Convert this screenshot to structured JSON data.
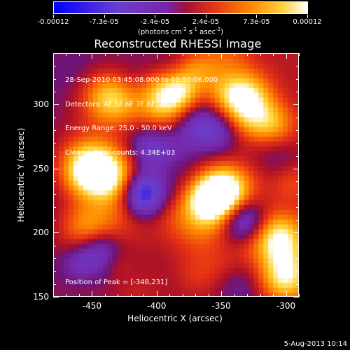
{
  "colorbar": {
    "tick_labels": [
      "-0.00012",
      "-7.3e-05",
      "-2.4e-05",
      "2.4e-05",
      "7.3e-05",
      "0.00012"
    ],
    "units_prefix": "(photons cm",
    "units_exp1": "-2",
    "units_mid1": " s",
    "units_exp2": "-1",
    "units_mid2": " asec",
    "units_exp3": "-2",
    "units_suffix": ")",
    "colors": [
      "#0000ff",
      "#6a3fd0",
      "#7a22a8",
      "#c0201a",
      "#ff7a00",
      "#ffd040",
      "#ffffff"
    ]
  },
  "chart_data": {
    "type": "heatmap",
    "title": "Reconstructed RHESSI Image",
    "xlabel": "Heliocentric X (arcsec)",
    "ylabel": "Heliocentric Y (arcsec)",
    "xlim": [
      -480,
      -290
    ],
    "ylim": [
      150,
      340
    ],
    "x_ticks": [
      -450,
      -400,
      -350,
      -300
    ],
    "y_ticks": [
      150,
      200,
      250,
      300
    ],
    "value_range": [
      -0.00012,
      0.00012
    ],
    "info_lines": [
      "28-Sep-2010 03:45:08.000 to 03:50:06.000",
      "Detectors: 4F 5F 6F 7F 8F, Att 0",
      "Energy Range: 25.0 - 50.0 keV",
      "Clean    Total counts: 4.34E+03"
    ],
    "peak_text": "Position of Peak = [-348,231]",
    "bright_sources": [
      {
        "x": -348,
        "y": 231,
        "level": 1.0
      },
      {
        "x": -310,
        "y": 285,
        "level": 0.9
      },
      {
        "x": -305,
        "y": 195,
        "level": 0.85
      },
      {
        "x": -300,
        "y": 165,
        "level": 0.8
      },
      {
        "x": -330,
        "y": 305,
        "level": 0.75
      },
      {
        "x": -395,
        "y": 300,
        "level": 0.7
      },
      {
        "x": -450,
        "y": 250,
        "level": 0.6
      },
      {
        "x": -455,
        "y": 205,
        "level": 0.55
      },
      {
        "x": -440,
        "y": 310,
        "level": 0.5
      },
      {
        "x": -370,
        "y": 325,
        "level": 0.55
      }
    ],
    "dark_sources": [
      {
        "x": -410,
        "y": 230,
        "level": -0.8
      },
      {
        "x": -333,
        "y": 210,
        "level": -0.7
      },
      {
        "x": -445,
        "y": 185,
        "level": -0.55
      },
      {
        "x": -405,
        "y": 265,
        "level": -0.5
      }
    ]
  },
  "footer": {
    "date": "5-Aug-2013 10:14"
  }
}
